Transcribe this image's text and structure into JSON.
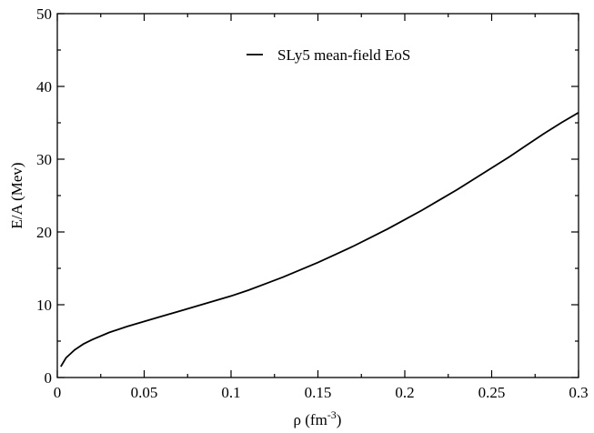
{
  "chart_data": {
    "type": "line",
    "title": "",
    "xlabel": "ρ (fm",
    "xlabel_sup": "-3",
    "xlabel_close": ")",
    "ylabel": "E/A (Mev)",
    "xlim": [
      0,
      0.3
    ],
    "ylim": [
      0,
      50
    ],
    "x_ticks": [
      0,
      0.05,
      0.1,
      0.15,
      0.2,
      0.25,
      0.3
    ],
    "x_tick_labels": [
      "0",
      "0.05",
      "0.1",
      "0.15",
      "0.2",
      "0.25",
      "0.3"
    ],
    "y_ticks": [
      0,
      10,
      20,
      30,
      40,
      50
    ],
    "y_tick_labels": [
      "0",
      "10",
      "20",
      "30",
      "40",
      "50"
    ],
    "grid": false,
    "legend_position": "top-right",
    "series": [
      {
        "name": "SLy5 mean-field EoS",
        "color": "#000000",
        "x": [
          0.002,
          0.005,
          0.01,
          0.015,
          0.02,
          0.03,
          0.04,
          0.05,
          0.06,
          0.07,
          0.08,
          0.09,
          0.1,
          0.11,
          0.12,
          0.13,
          0.14,
          0.15,
          0.16,
          0.17,
          0.18,
          0.19,
          0.2,
          0.21,
          0.22,
          0.23,
          0.24,
          0.25,
          0.26,
          0.27,
          0.28,
          0.29,
          0.3
        ],
        "y": [
          1.5,
          2.7,
          3.8,
          4.6,
          5.2,
          6.2,
          7.0,
          7.7,
          8.4,
          9.1,
          9.8,
          10.5,
          11.2,
          12.0,
          12.9,
          13.8,
          14.8,
          15.8,
          16.9,
          18.0,
          19.2,
          20.4,
          21.7,
          23.0,
          24.4,
          25.8,
          27.3,
          28.8,
          30.3,
          31.9,
          33.5,
          35.0,
          36.4
        ]
      }
    ]
  }
}
